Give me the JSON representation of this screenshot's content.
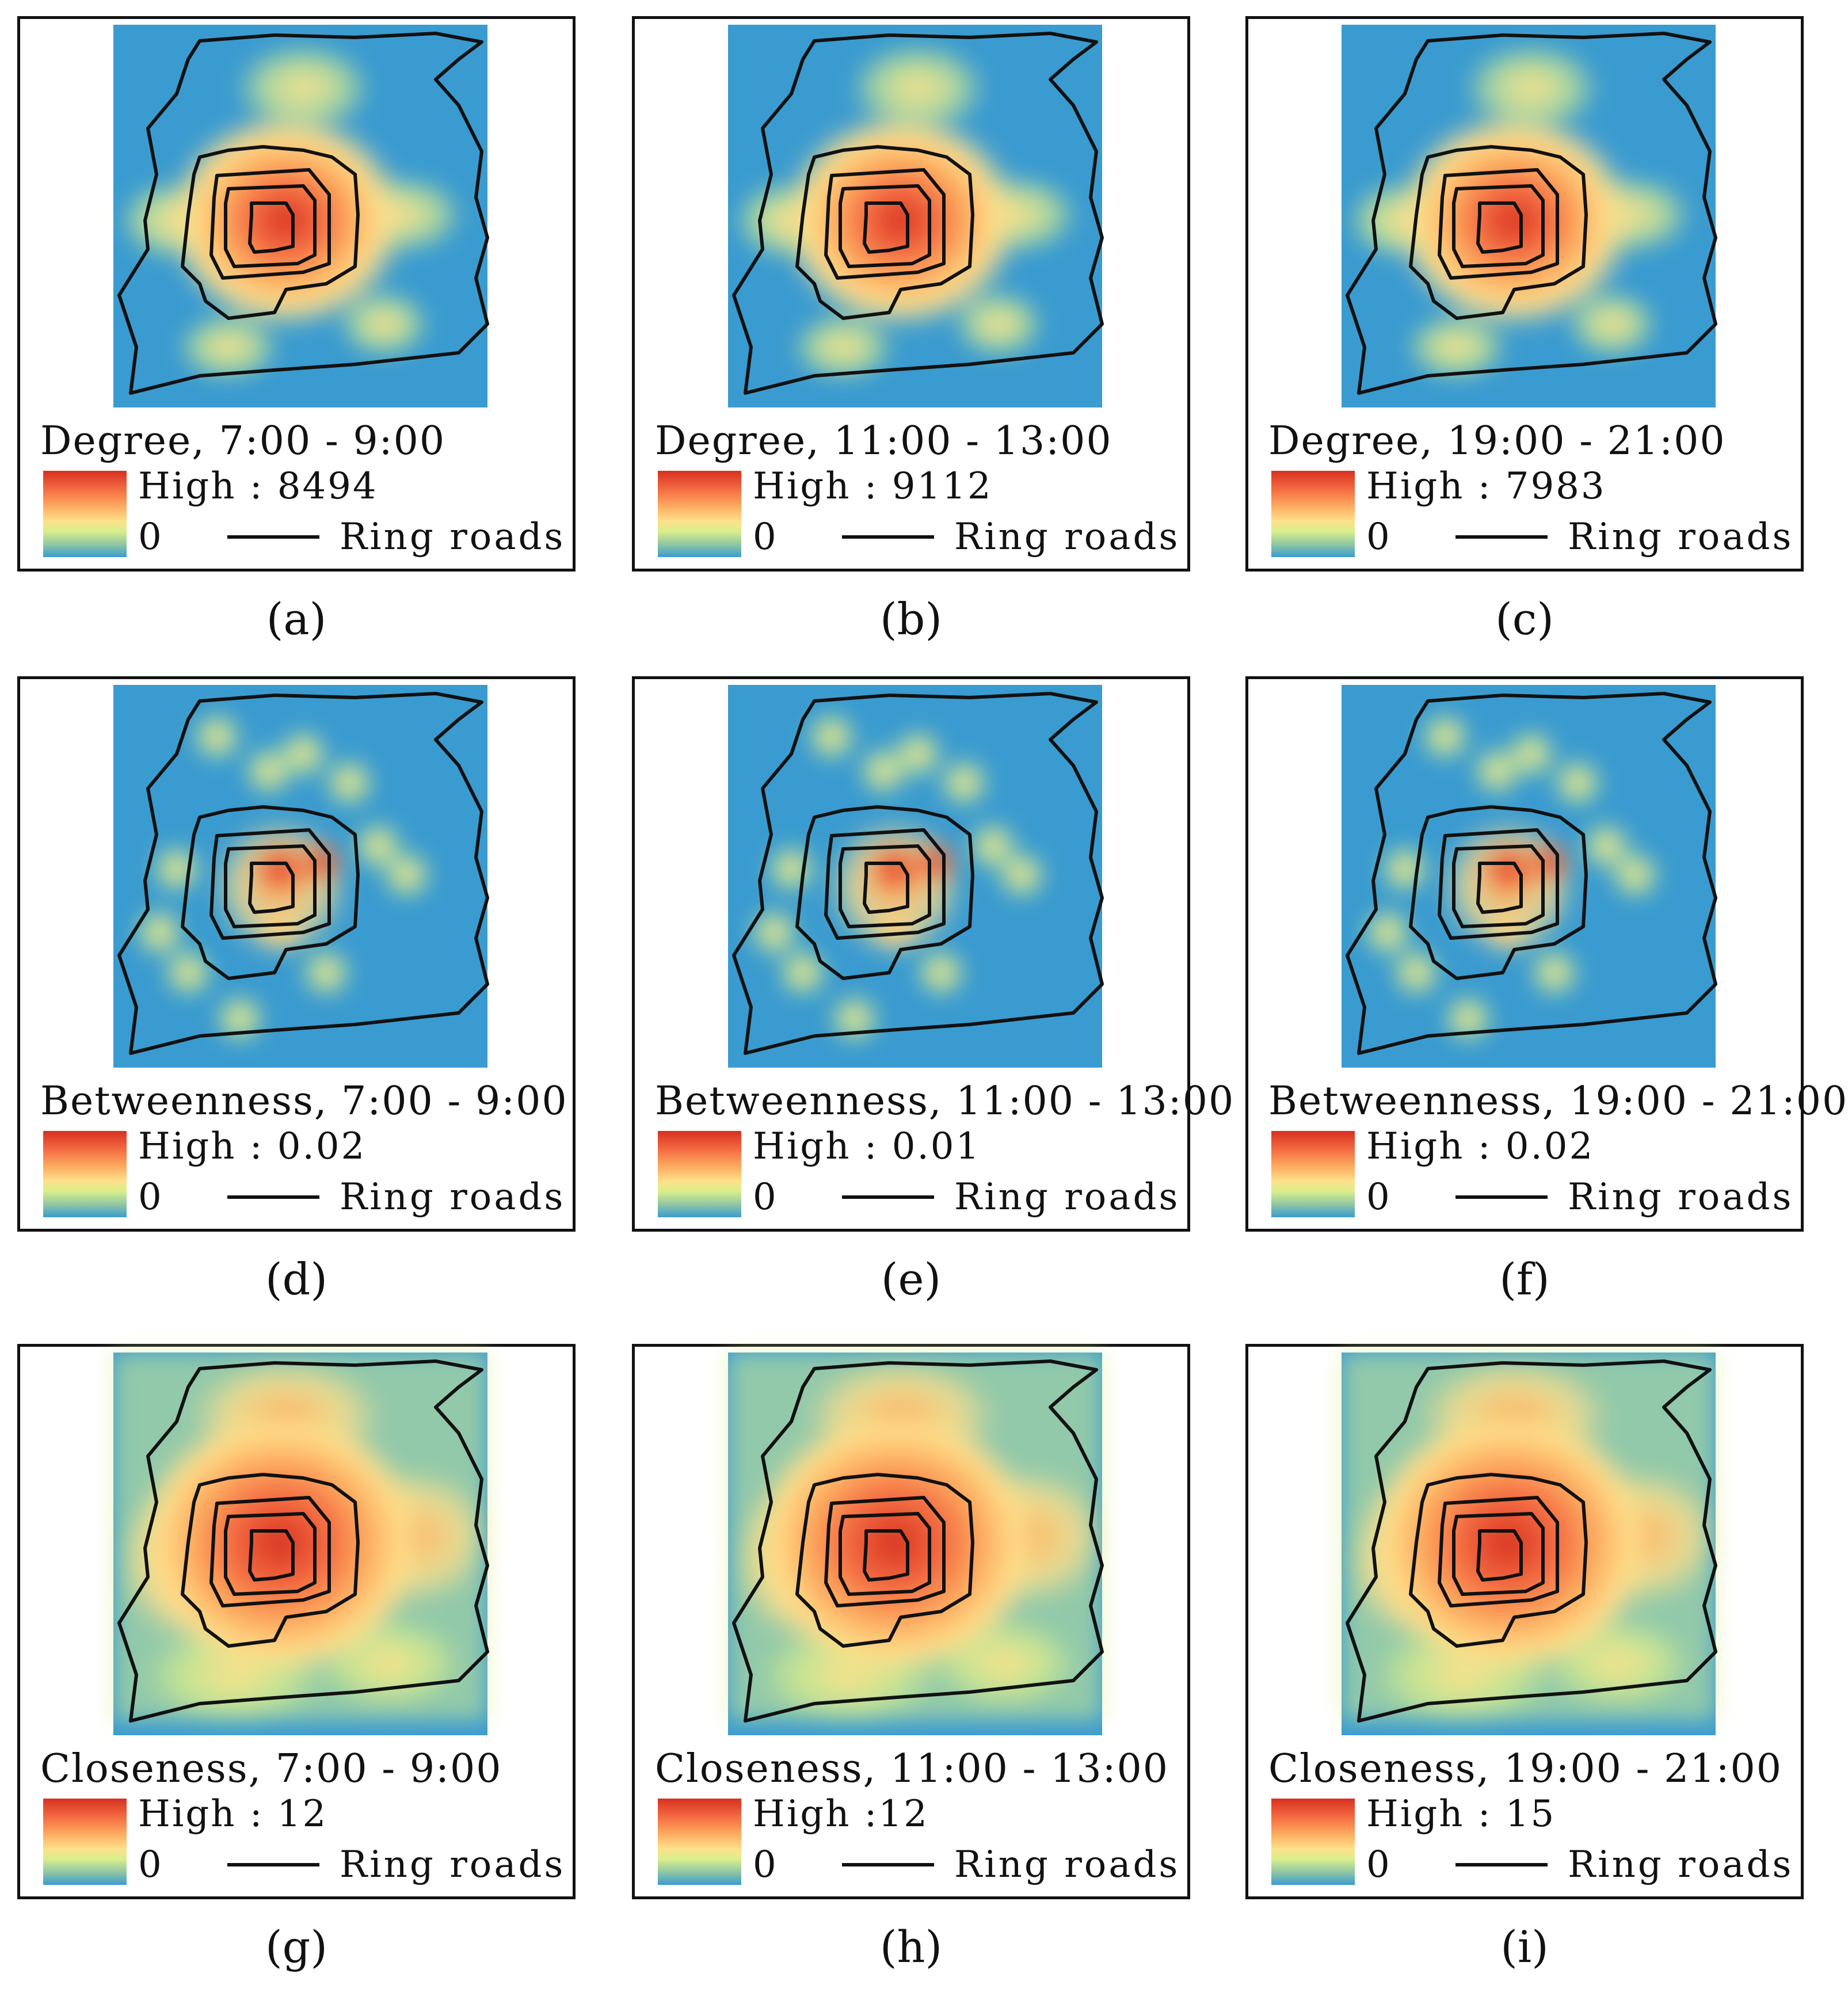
{
  "legend": {
    "zero_label": "0",
    "ring_label": "Ring roads"
  },
  "panels": [
    {
      "id": "a",
      "metric": "degree",
      "title": "Degree, 7:00 - 9:00",
      "high": "High : 8494",
      "caption": "(a)"
    },
    {
      "id": "b",
      "metric": "degree",
      "title": "Degree, 11:00 - 13:00",
      "high": "High : 9112",
      "caption": "(b)"
    },
    {
      "id": "c",
      "metric": "degree",
      "title": "Degree, 19:00 - 21:00",
      "high": "High : 7983",
      "caption": "(c)"
    },
    {
      "id": "d",
      "metric": "betweenness",
      "title": "Betweenness, 7:00 - 9:00",
      "high": "High : 0.02",
      "caption": "(d)"
    },
    {
      "id": "e",
      "metric": "betweenness",
      "title": "Betweenness, 11:00 - 13:00",
      "high": "High : 0.01",
      "caption": "(e)"
    },
    {
      "id": "f",
      "metric": "betweenness",
      "title": "Betweenness, 19:00 - 21:00",
      "high": "High : 0.02",
      "caption": "(f)"
    },
    {
      "id": "g",
      "metric": "closeness",
      "title": "Closeness, 7:00 - 9:00",
      "high": "High : 12",
      "caption": "(g)"
    },
    {
      "id": "h",
      "metric": "closeness",
      "title": "Closeness, 11:00 - 13:00",
      "high": "High :12",
      "caption": "(h)"
    },
    {
      "id": "i",
      "metric": "closeness",
      "title": "Closeness, 19:00 - 21:00",
      "high": "High : 15",
      "caption": "(i)"
    }
  ],
  "colors": {
    "low": "#3a9bd0",
    "mid": "#fee08b",
    "high": "#d7301f",
    "line": "#111111"
  }
}
